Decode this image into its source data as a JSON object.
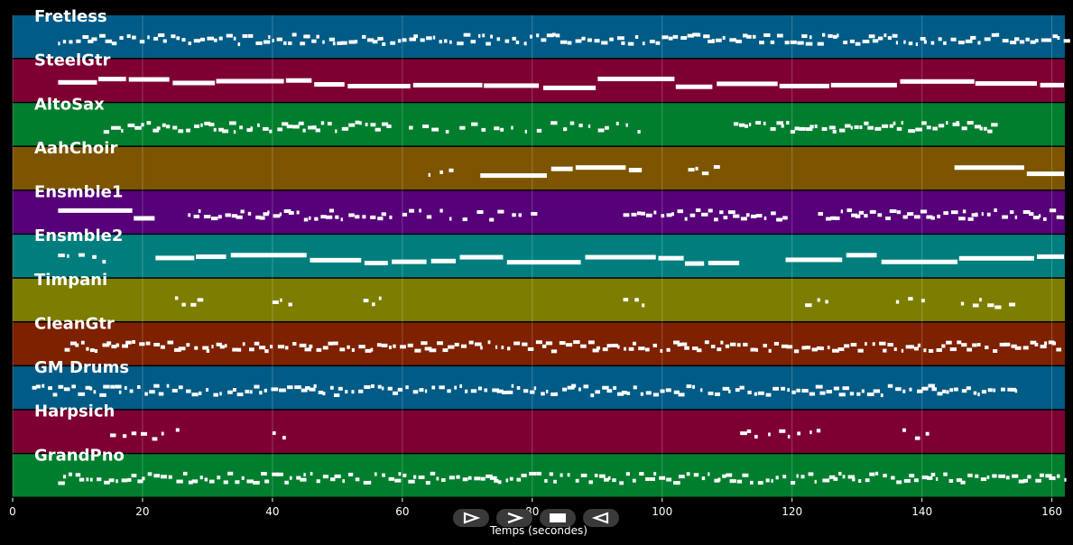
{
  "chart_data": {
    "type": "piano-roll",
    "xlabel": "Temps (secondes)",
    "xlim": [
      0,
      162
    ],
    "xticks": [
      0,
      20,
      40,
      60,
      80,
      100,
      120,
      140,
      160
    ],
    "grid": true,
    "tracks": [
      {
        "name": "Fretless",
        "color": "#005b86",
        "segments": [
          [
            7,
            163,
            "dense"
          ]
        ]
      },
      {
        "name": "SteelGtr",
        "color": "#7e0033",
        "segments": [
          [
            7,
            163,
            "solid"
          ]
        ]
      },
      {
        "name": "AltoSax",
        "color": "#007e2e",
        "segments": [
          [
            14,
            58,
            "dense"
          ],
          [
            61,
            98,
            "sparse"
          ],
          [
            111,
            151,
            "dense"
          ]
        ]
      },
      {
        "name": "AahChoir",
        "color": "#7d5500",
        "segments": [
          [
            64,
            69,
            "sparse"
          ],
          [
            72,
            97,
            "solid"
          ],
          [
            104,
            109,
            "sparse"
          ],
          [
            145,
            163,
            "solid"
          ]
        ]
      },
      {
        "name": "Ensmble1",
        "color": "#560079",
        "segments": [
          [
            7,
            22,
            "solid"
          ],
          [
            27,
            58,
            "dense"
          ],
          [
            60,
            80,
            "sparse"
          ],
          [
            94,
            119,
            "dense"
          ],
          [
            124,
            163,
            "dense"
          ]
        ]
      },
      {
        "name": "Ensmble2",
        "color": "#007e7e",
        "segments": [
          [
            7,
            14,
            "sparse"
          ],
          [
            22,
            112,
            "solid"
          ],
          [
            119,
            163,
            "solid"
          ]
        ]
      },
      {
        "name": "Timpani",
        "color": "#7d7d00",
        "segments": [
          [
            25,
            29,
            "sparse"
          ],
          [
            40,
            44,
            "sparse"
          ],
          [
            54,
            58,
            "sparse"
          ],
          [
            94,
            97,
            "sparse"
          ],
          [
            122,
            126,
            "sparse"
          ],
          [
            136,
            141,
            "sparse"
          ],
          [
            146,
            155,
            "sparse"
          ]
        ]
      },
      {
        "name": "CleanGtr",
        "color": "#7d2100",
        "segments": [
          [
            8,
            161,
            "dense"
          ]
        ]
      },
      {
        "name": "GM Drums",
        "color": "#005b86",
        "segments": [
          [
            3,
            155,
            "dense"
          ]
        ]
      },
      {
        "name": "Harpsich",
        "color": "#7e0033",
        "segments": [
          [
            15,
            26,
            "sparse"
          ],
          [
            40,
            43,
            "sparse"
          ],
          [
            112,
            124,
            "sparse"
          ],
          [
            137,
            141,
            "sparse"
          ]
        ]
      },
      {
        "name": "GrandPno",
        "color": "#007e2e",
        "segments": [
          [
            7,
            163,
            "dense"
          ]
        ]
      }
    ]
  },
  "transport": {
    "buttons": [
      {
        "name": "play-button",
        "icon": "play-icon"
      },
      {
        "name": "fast-forward-button",
        "icon": "fast-forward-icon"
      },
      {
        "name": "stop-button",
        "icon": "stop-icon"
      },
      {
        "name": "rewind-button",
        "icon": "rewind-icon"
      }
    ]
  }
}
